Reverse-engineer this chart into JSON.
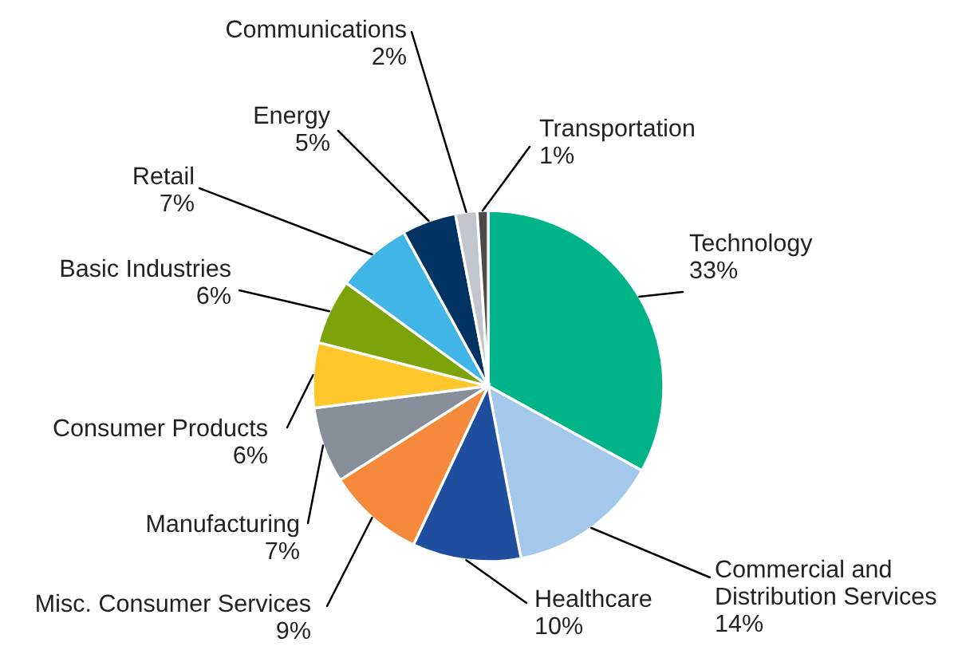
{
  "chart_data": {
    "type": "pie",
    "categories": [
      "Technology",
      "Commercial and\nDistribution Services",
      "Healthcare",
      "Misc. Consumer Services",
      "Manufacturing",
      "Consumer Products",
      "Basic Industries",
      "Retail",
      "Energy",
      "Communications",
      "Transportation"
    ],
    "values": [
      33,
      14,
      10,
      9,
      7,
      6,
      6,
      7,
      5,
      2,
      1
    ],
    "value_labels": [
      "33%",
      "14%",
      "10%",
      "9%",
      "7%",
      "6%",
      "6%",
      "7%",
      "5%",
      "2%",
      "1%"
    ],
    "colors": [
      "#00b388",
      "#a3c8ec",
      "#1f4e9e",
      "#f58a3c",
      "#878d99",
      "#ffc72c",
      "#7da30b",
      "#41b6e6",
      "#003262",
      "#c3c6cc",
      "#4a4a4a"
    ],
    "legend": false
  }
}
